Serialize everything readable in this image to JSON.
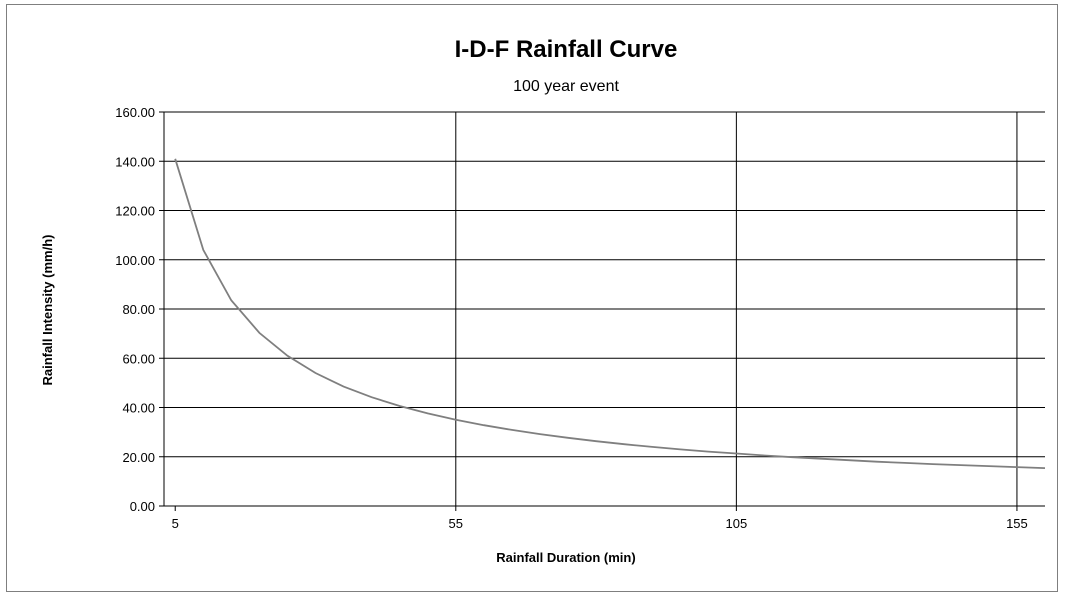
{
  "chart_data": {
    "type": "line",
    "title": "I-D-F Rainfall Curve",
    "subtitle": "100  year event",
    "xlabel": "Rainfall Duration (min)",
    "ylabel": "Rainfall Intensity (mm/h)",
    "xlim": [
      3,
      160
    ],
    "ylim": [
      0,
      160
    ],
    "x_ticks": [
      5,
      55,
      105,
      155
    ],
    "x_tick_labels": [
      "5",
      "55",
      "105",
      "155"
    ],
    "y_ticks": [
      0,
      20,
      40,
      60,
      80,
      100,
      120,
      140,
      160
    ],
    "y_tick_labels": [
      "0.00",
      "20.00",
      "40.00",
      "60.00",
      "80.00",
      "100.00",
      "120.00",
      "140.00",
      "160.00"
    ],
    "grid": true,
    "line_color": "#7f7f7f",
    "series": [
      {
        "x": [
          5,
          10,
          15,
          20,
          25,
          30,
          35,
          40,
          45,
          50,
          55,
          60,
          65,
          70,
          75,
          80,
          85,
          90,
          95,
          100,
          105,
          110,
          115,
          120,
          125,
          130,
          135,
          140,
          145,
          150,
          155,
          160
        ],
        "values": [
          141,
          104,
          83.5,
          70.3,
          61,
          54,
          48.5,
          44.2,
          40.6,
          37.6,
          35.0,
          32.8,
          30.9,
          29.2,
          27.7,
          26.3,
          25.1,
          24.0,
          23.0,
          22.1,
          21.3,
          20.5,
          19.8,
          19.2,
          18.6,
          18.0,
          17.5,
          17.0,
          16.6,
          16.2,
          15.8,
          15.4
        ]
      }
    ]
  }
}
